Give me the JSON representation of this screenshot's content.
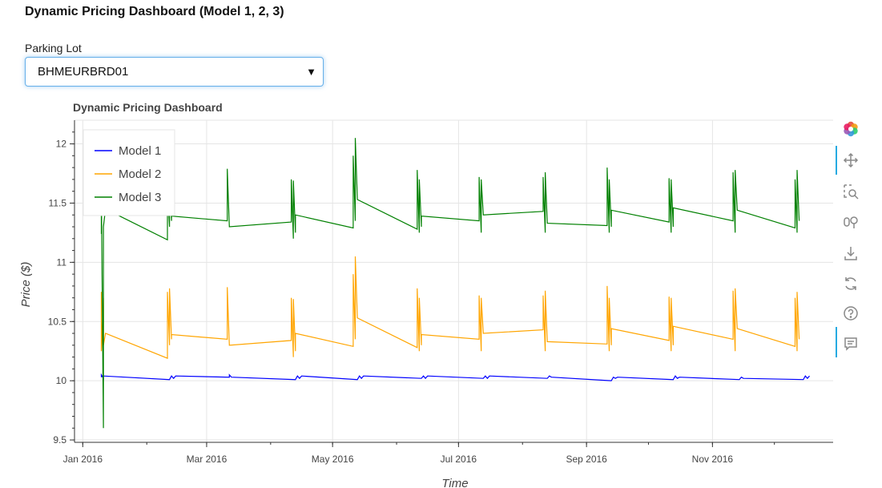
{
  "page": {
    "title": "Dynamic Pricing Dashboard (Model 1, 2, 3)"
  },
  "filter": {
    "label": "Parking Lot",
    "selected": "BHMEURBRD01"
  },
  "chart_data": {
    "type": "line",
    "title": "Dynamic Pricing Dashboard",
    "xlabel": "Time",
    "ylabel": "Price ($)",
    "xlim": [
      "2015-12-28",
      "2016-12-31"
    ],
    "ylim": [
      9.48,
      12.2
    ],
    "x_ticks": [
      "2016-01-01",
      "2016-03-01",
      "2016-05-01",
      "2016-07-01",
      "2016-09-01",
      "2016-11-01"
    ],
    "x_tick_labels": [
      "Jan 2016",
      "Mar 2016",
      "May 2016",
      "Jul 2016",
      "Sep 2016",
      "Nov 2016"
    ],
    "y_ticks": [
      9.5,
      10,
      10.5,
      11,
      11.5,
      12
    ],
    "y_tick_labels": [
      "9.5",
      "10",
      "10.5",
      "11",
      "11.5",
      "12"
    ],
    "grid": true,
    "legend_position": "top-left",
    "series": [
      {
        "name": "Model 1",
        "color": "#0000ff",
        "points": [
          [
            "2016-01-10",
            10.03
          ],
          [
            "2016-01-10",
            10.05
          ],
          [
            "2016-01-11",
            10.02
          ],
          [
            "2016-01-11",
            10.04
          ],
          [
            "2016-02-12",
            10.01
          ],
          [
            "2016-02-13",
            10.04
          ],
          [
            "2016-02-14",
            10.02
          ],
          [
            "2016-02-15",
            10.04
          ],
          [
            "2016-03-12",
            10.03
          ],
          [
            "2016-03-12",
            10.05
          ],
          [
            "2016-03-13",
            10.03
          ],
          [
            "2016-04-13",
            10.01
          ],
          [
            "2016-04-14",
            10.04
          ],
          [
            "2016-04-15",
            10.02
          ],
          [
            "2016-04-16",
            10.04
          ],
          [
            "2016-05-13",
            10.01
          ],
          [
            "2016-05-14",
            10.04
          ],
          [
            "2016-05-15",
            10.02
          ],
          [
            "2016-05-16",
            10.04
          ],
          [
            "2016-06-13",
            10.02
          ],
          [
            "2016-06-14",
            10.04
          ],
          [
            "2016-06-15",
            10.02
          ],
          [
            "2016-06-16",
            10.04
          ],
          [
            "2016-07-13",
            10.02
          ],
          [
            "2016-07-14",
            10.04
          ],
          [
            "2016-07-15",
            10.02
          ],
          [
            "2016-07-16",
            10.04
          ],
          [
            "2016-08-13",
            10.02
          ],
          [
            "2016-08-14",
            10.04
          ],
          [
            "2016-08-15",
            10.03
          ],
          [
            "2016-09-13",
            10.0
          ],
          [
            "2016-09-14",
            10.03
          ],
          [
            "2016-09-15",
            10.02
          ],
          [
            "2016-09-16",
            10.03
          ],
          [
            "2016-10-13",
            10.01
          ],
          [
            "2016-10-14",
            10.04
          ],
          [
            "2016-10-15",
            10.02
          ],
          [
            "2016-10-16",
            10.03
          ],
          [
            "2016-11-14",
            10.01
          ],
          [
            "2016-11-15",
            10.03
          ],
          [
            "2016-11-16",
            10.02
          ],
          [
            "2016-12-15",
            10.01
          ],
          [
            "2016-12-16",
            10.04
          ],
          [
            "2016-12-17",
            10.02
          ],
          [
            "2016-12-18",
            10.04
          ]
        ]
      },
      {
        "name": "Model 2",
        "color": "#ffa500",
        "points": [
          [
            "2016-01-10",
            10.4
          ],
          [
            "2016-01-10",
            10.75
          ],
          [
            "2016-01-10",
            10.25
          ],
          [
            "2016-01-11",
            10.7
          ],
          [
            "2016-01-11",
            10.3
          ],
          [
            "2016-01-12",
            10.4
          ],
          [
            "2016-02-11",
            10.19
          ],
          [
            "2016-02-11",
            10.75
          ],
          [
            "2016-02-12",
            10.3
          ],
          [
            "2016-02-12",
            10.78
          ],
          [
            "2016-02-13",
            10.35
          ],
          [
            "2016-02-13",
            10.39
          ],
          [
            "2016-03-11",
            10.35
          ],
          [
            "2016-03-11",
            10.79
          ],
          [
            "2016-03-12",
            10.3
          ],
          [
            "2016-04-11",
            10.34
          ],
          [
            "2016-04-11",
            10.7
          ],
          [
            "2016-04-12",
            10.2
          ],
          [
            "2016-04-12",
            10.69
          ],
          [
            "2016-04-13",
            10.25
          ],
          [
            "2016-04-13",
            10.4
          ],
          [
            "2016-05-11",
            10.29
          ],
          [
            "2016-05-11",
            10.9
          ],
          [
            "2016-05-12",
            10.35
          ],
          [
            "2016-05-12",
            11.05
          ],
          [
            "2016-05-13",
            10.53
          ],
          [
            "2016-06-11",
            10.28
          ],
          [
            "2016-06-11",
            10.78
          ],
          [
            "2016-06-12",
            10.25
          ],
          [
            "2016-06-12",
            10.7
          ],
          [
            "2016-06-13",
            10.3
          ],
          [
            "2016-06-13",
            10.39
          ],
          [
            "2016-07-11",
            10.35
          ],
          [
            "2016-07-11",
            10.72
          ],
          [
            "2016-07-12",
            10.25
          ],
          [
            "2016-07-12",
            10.7
          ],
          [
            "2016-07-13",
            10.4
          ],
          [
            "2016-08-11",
            10.43
          ],
          [
            "2016-08-11",
            10.72
          ],
          [
            "2016-08-12",
            10.25
          ],
          [
            "2016-08-12",
            10.76
          ],
          [
            "2016-08-13",
            10.33
          ],
          [
            "2016-09-11",
            10.31
          ],
          [
            "2016-09-11",
            10.8
          ],
          [
            "2016-09-12",
            10.25
          ],
          [
            "2016-09-12",
            10.7
          ],
          [
            "2016-09-13",
            10.3
          ],
          [
            "2016-09-13",
            10.44
          ],
          [
            "2016-10-11",
            10.34
          ],
          [
            "2016-10-11",
            10.71
          ],
          [
            "2016-10-12",
            10.25
          ],
          [
            "2016-10-12",
            10.7
          ],
          [
            "2016-10-13",
            10.3
          ],
          [
            "2016-10-13",
            10.46
          ],
          [
            "2016-11-11",
            10.35
          ],
          [
            "2016-11-11",
            10.76
          ],
          [
            "2016-11-12",
            10.25
          ],
          [
            "2016-11-12",
            10.78
          ],
          [
            "2016-11-13",
            10.44
          ],
          [
            "2016-12-11",
            10.29
          ],
          [
            "2016-12-11",
            10.7
          ],
          [
            "2016-12-12",
            10.25
          ],
          [
            "2016-12-12",
            10.75
          ],
          [
            "2016-12-13",
            10.35
          ]
        ]
      },
      {
        "name": "Model 3",
        "color": "#008000",
        "points": [
          [
            "2016-01-10",
            11.5
          ],
          [
            "2016-01-10",
            11.24
          ],
          [
            "2016-01-10",
            11.6
          ],
          [
            "2016-01-11",
            9.6
          ],
          [
            "2016-01-11",
            11.3
          ],
          [
            "2016-01-12",
            11.45
          ],
          [
            "2016-02-11",
            11.19
          ],
          [
            "2016-02-11",
            11.62
          ],
          [
            "2016-02-12",
            11.3
          ],
          [
            "2016-02-12",
            11.65
          ],
          [
            "2016-02-13",
            11.35
          ],
          [
            "2016-02-13",
            11.39
          ],
          [
            "2016-03-11",
            11.35
          ],
          [
            "2016-03-11",
            11.79
          ],
          [
            "2016-03-12",
            11.3
          ],
          [
            "2016-04-11",
            11.34
          ],
          [
            "2016-04-11",
            11.7
          ],
          [
            "2016-04-12",
            11.2
          ],
          [
            "2016-04-12",
            11.69
          ],
          [
            "2016-04-13",
            11.25
          ],
          [
            "2016-04-13",
            11.4
          ],
          [
            "2016-05-11",
            11.29
          ],
          [
            "2016-05-11",
            11.9
          ],
          [
            "2016-05-12",
            11.35
          ],
          [
            "2016-05-12",
            12.05
          ],
          [
            "2016-05-13",
            11.53
          ],
          [
            "2016-06-11",
            11.28
          ],
          [
            "2016-06-11",
            11.78
          ],
          [
            "2016-06-12",
            11.25
          ],
          [
            "2016-06-12",
            11.7
          ],
          [
            "2016-06-13",
            11.3
          ],
          [
            "2016-06-13",
            11.39
          ],
          [
            "2016-07-11",
            11.35
          ],
          [
            "2016-07-11",
            11.72
          ],
          [
            "2016-07-12",
            11.25
          ],
          [
            "2016-07-12",
            11.7
          ],
          [
            "2016-07-13",
            11.4
          ],
          [
            "2016-08-11",
            11.43
          ],
          [
            "2016-08-11",
            11.72
          ],
          [
            "2016-08-12",
            11.25
          ],
          [
            "2016-08-12",
            11.76
          ],
          [
            "2016-08-13",
            11.33
          ],
          [
            "2016-09-11",
            11.31
          ],
          [
            "2016-09-11",
            11.8
          ],
          [
            "2016-09-12",
            11.25
          ],
          [
            "2016-09-12",
            11.7
          ],
          [
            "2016-09-13",
            11.3
          ],
          [
            "2016-09-13",
            11.44
          ],
          [
            "2016-10-11",
            11.34
          ],
          [
            "2016-10-11",
            11.71
          ],
          [
            "2016-10-12",
            11.25
          ],
          [
            "2016-10-12",
            11.7
          ],
          [
            "2016-10-13",
            11.3
          ],
          [
            "2016-10-13",
            11.46
          ],
          [
            "2016-11-11",
            11.35
          ],
          [
            "2016-11-11",
            11.76
          ],
          [
            "2016-11-12",
            11.25
          ],
          [
            "2016-11-12",
            11.78
          ],
          [
            "2016-11-13",
            11.44
          ],
          [
            "2016-12-11",
            11.29
          ],
          [
            "2016-12-11",
            11.7
          ],
          [
            "2016-12-12",
            11.25
          ],
          [
            "2016-12-12",
            11.78
          ],
          [
            "2016-12-13",
            11.35
          ]
        ]
      }
    ]
  },
  "toolbar": {
    "tools": [
      {
        "name": "bokeh-logo-icon",
        "active": false
      },
      {
        "name": "pan-icon",
        "active": true
      },
      {
        "name": "box-zoom-icon",
        "active": false
      },
      {
        "name": "wheel-zoom-icon",
        "active": false
      },
      {
        "name": "save-icon",
        "active": false
      },
      {
        "name": "reset-icon",
        "active": false
      },
      {
        "name": "help-icon",
        "active": false
      },
      {
        "name": "hover-icon",
        "active": true
      }
    ]
  }
}
